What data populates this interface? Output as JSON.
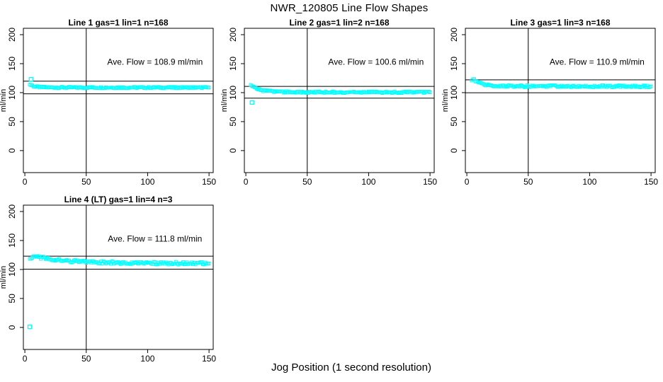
{
  "title": "NWR_120805  Line Flow Shapes",
  "xlabel": "Jog Position (1 second resolution)",
  "colors": {
    "points": "#00FFFF",
    "axis": "#000000",
    "background": "#FFFFFF"
  },
  "chart_data": [
    {
      "type": "scatter",
      "title": "Line 1 gas=1 lin=1 n=168",
      "annotation": "Ave. Flow =  108.9  ml/min",
      "ave_flow_ml_min": 108.9,
      "n": 168,
      "ylabel": "ml/min",
      "x_ticks": [
        0,
        50,
        100,
        150
      ],
      "y_ticks": [
        0,
        50,
        100,
        150,
        200
      ],
      "xlim": [
        -1.2,
        153.4
      ],
      "ylim": [
        -38,
        211
      ],
      "vline_x": 50,
      "hlines": [
        119.8,
        98.0
      ],
      "spread": 1.2,
      "band": [
        [
          4,
          114
        ],
        [
          8,
          110.5
        ],
        [
          12,
          109.5
        ],
        [
          20,
          109
        ],
        [
          40,
          108.8
        ],
        [
          80,
          108.8
        ],
        [
          120,
          108.8
        ],
        [
          150,
          108.8
        ]
      ],
      "outliers": [
        [
          5,
          123
        ]
      ]
    },
    {
      "type": "scatter",
      "title": "Line 2 gas=1 lin=2 n=168",
      "annotation": "Ave. Flow =  100.6  ml/min",
      "ave_flow_ml_min": 100.6,
      "n": 168,
      "ylabel": "ml/min",
      "x_ticks": [
        0,
        50,
        100,
        150
      ],
      "y_ticks": [
        0,
        50,
        100,
        150,
        200
      ],
      "xlim": [
        -1.2,
        153.4
      ],
      "ylim": [
        -38,
        211
      ],
      "vline_x": 50,
      "hlines": [
        110.7,
        90.5
      ],
      "spread": 1.4,
      "band": [
        [
          4,
          112
        ],
        [
          6,
          109.5
        ],
        [
          10,
          105.5
        ],
        [
          15,
          103
        ],
        [
          25,
          101.5
        ],
        [
          40,
          100.8
        ],
        [
          70,
          100.6
        ],
        [
          110,
          100.6
        ],
        [
          150,
          100.6
        ]
      ],
      "outliers": [
        [
          5,
          83
        ]
      ]
    },
    {
      "type": "scatter",
      "title": "Line 3 gas=1 lin=3 n=168",
      "annotation": "Ave. Flow =  110.9  ml/min",
      "ave_flow_ml_min": 110.9,
      "n": 168,
      "ylabel": "ml/min",
      "x_ticks": [
        0,
        50,
        100,
        150
      ],
      "y_ticks": [
        0,
        50,
        100,
        150,
        200
      ],
      "xlim": [
        -1.2,
        153.4
      ],
      "ylim": [
        -38,
        211
      ],
      "vline_x": 50,
      "hlines": [
        122.0,
        99.8
      ],
      "spread": 1.8,
      "band": [
        [
          4,
          121
        ],
        [
          6,
          122
        ],
        [
          9,
          118
        ],
        [
          13,
          114.5
        ],
        [
          20,
          112
        ],
        [
          30,
          111.3
        ],
        [
          60,
          111
        ],
        [
          100,
          111
        ],
        [
          150,
          110.8
        ]
      ],
      "outliers": []
    },
    {
      "type": "scatter",
      "title": "Line 4 (LT) gas=1 lin=4 n=3",
      "annotation": "Ave. Flow =  111.8  ml/min",
      "ave_flow_ml_min": 111.8,
      "n": 3,
      "ylabel": "ml/min",
      "x_ticks": [
        0,
        50,
        100,
        150
      ],
      "y_ticks": [
        0,
        50,
        100,
        150,
        200
      ],
      "xlim": [
        -1.2,
        153.4
      ],
      "ylim": [
        -38,
        211
      ],
      "vline_x": 50,
      "hlines": [
        123.0,
        100.6
      ],
      "spread": 2.4,
      "band": [
        [
          4,
          119
        ],
        [
          6,
          121.5
        ],
        [
          9,
          122
        ],
        [
          14,
          120
        ],
        [
          25,
          116.5
        ],
        [
          40,
          114
        ],
        [
          60,
          112.5
        ],
        [
          80,
          111.5
        ],
        [
          110,
          111
        ],
        [
          130,
          110.8
        ],
        [
          150,
          110.5
        ]
      ],
      "outliers": [
        [
          4,
          1
        ]
      ]
    }
  ]
}
